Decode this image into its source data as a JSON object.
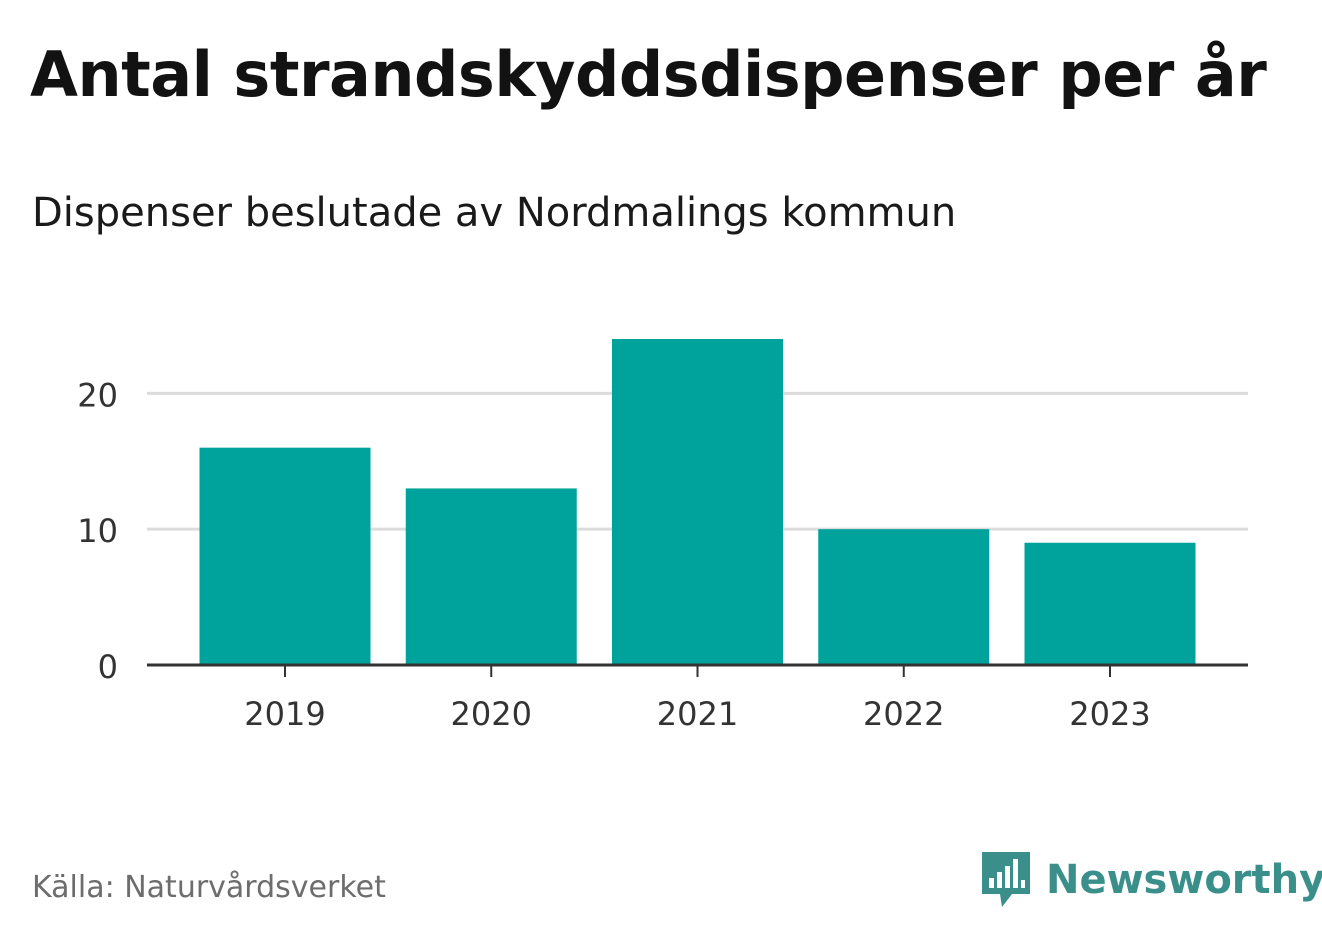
{
  "header": {
    "title": "Antal strandskyddsdispenser per år",
    "subtitle": "Dispenser beslutade av Nordmalings kommun"
  },
  "footer": {
    "source": "Källa: Naturvårdsverket",
    "brand": "Newsworthy",
    "brand_icon": "newsworthy-logo-icon"
  },
  "colors": {
    "bar": "#00a39b",
    "grid": "#dcdcdc",
    "axis": "#333333",
    "brand": "#3b8f8a"
  },
  "chart_data": {
    "type": "bar",
    "title": "Antal strandskyddsdispenser per år",
    "subtitle": "Dispenser beslutade av Nordmalings kommun",
    "categories": [
      "2019",
      "2020",
      "2021",
      "2022",
      "2023"
    ],
    "values": [
      16,
      13,
      24,
      10,
      9
    ],
    "xlabel": "",
    "ylabel": "",
    "ylim": [
      0,
      24
    ],
    "yticks": [
      0,
      10,
      20
    ],
    "grid": true,
    "legend": "none"
  }
}
